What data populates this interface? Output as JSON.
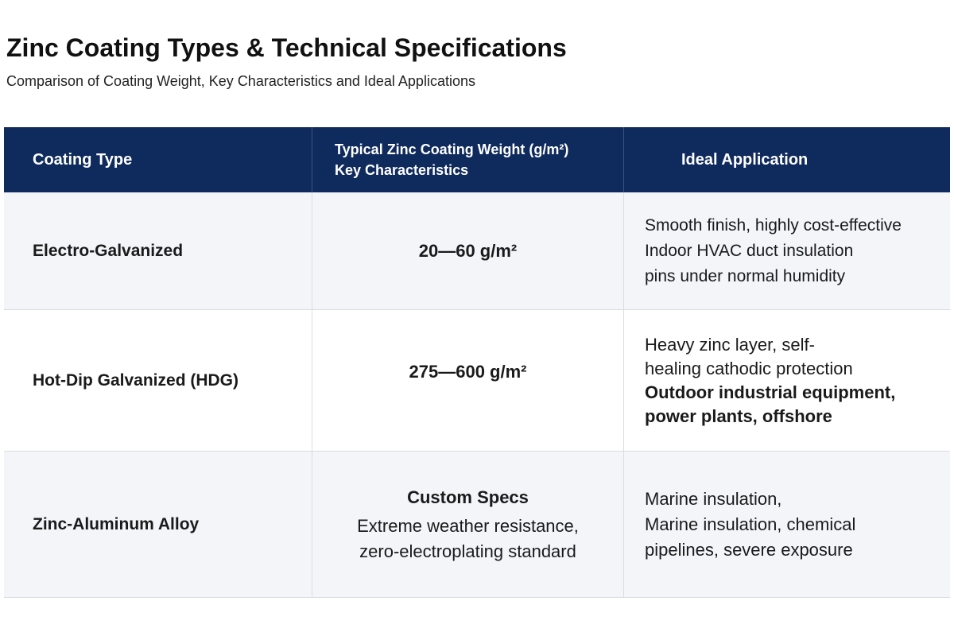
{
  "header": {
    "title": "Zinc Coating Types & Technical Specifications",
    "subtitle": "Comparison of Coating Weight, Key Characteristics and Ideal Applications"
  },
  "table": {
    "columns": [
      "Coating Type",
      [
        "Typical Zinc Coating Weight (g/m²)",
        "Key Characteristics"
      ],
      "Ideal Application"
    ],
    "rows": [
      {
        "type": "Electro-Galvanized",
        "characteristics_bold": [
          "20—60 g/m²"
        ],
        "application": [
          "Smooth finish, highly cost-effective",
          "Indoor HVAC duct insulation",
          "pins under normal humidity"
        ]
      },
      {
        "type": "Hot-Dip Galvanized (HDG)",
        "characteristics_bold": [
          "275—600 g/m²"
        ],
        "application": [
          "Heavy zinc layer, self-",
          "healing cathodic protection"
        ],
        "application_bold": [
          "Outdoor industrial equipment,",
          "power plants, offshore"
        ]
      },
      {
        "type": "Zinc-Aluminum Alloy",
        "characteristics_bold": [
          "Custom Specs"
        ],
        "characteristics": [
          "Extreme weather resistance,",
          "zero-electroplating standard"
        ],
        "application": [
          "Marine insulation,",
          "Marine insulation, chemical",
          "pipelines, severe exposure"
        ]
      }
    ]
  }
}
